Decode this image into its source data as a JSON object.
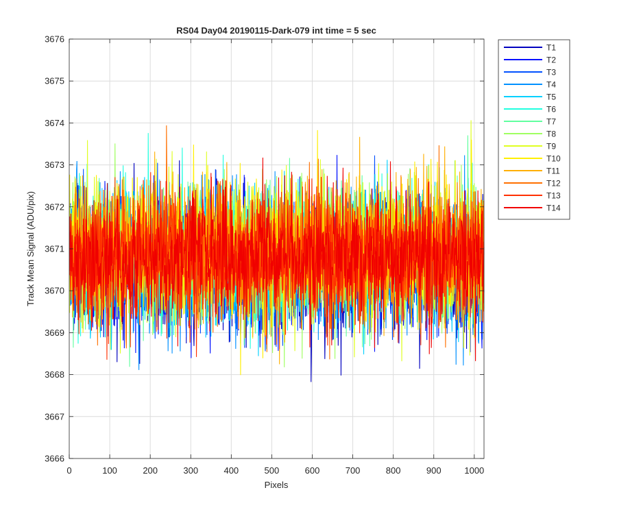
{
  "chart_data": {
    "type": "line",
    "title": "RS04 Day04 20190115-Dark-079 int time = 5 sec",
    "xlabel": "Pixels",
    "ylabel": "Track Mean Signal (ADU/pix)",
    "xlim": [
      0,
      1024
    ],
    "ylim": [
      3666,
      3676
    ],
    "x_ticks": [
      0,
      100,
      200,
      300,
      400,
      500,
      600,
      700,
      800,
      900,
      1000
    ],
    "y_ticks": [
      3666,
      3667,
      3668,
      3669,
      3670,
      3671,
      3672,
      3673,
      3674,
      3675,
      3676
    ],
    "grid": true,
    "legend_placement": "outside-top-right",
    "x_count": 1024,
    "series": [
      {
        "name": "T1",
        "color": "#0000BF",
        "mean": 3670.45,
        "noise_sd": 0.8
      },
      {
        "name": "T2",
        "color": "#0010FF",
        "mean": 3670.55,
        "noise_sd": 0.78
      },
      {
        "name": "T3",
        "color": "#0050FF",
        "mean": 3670.6,
        "noise_sd": 0.78
      },
      {
        "name": "T4",
        "color": "#0090FF",
        "mean": 3670.7,
        "noise_sd": 0.8
      },
      {
        "name": "T5",
        "color": "#00D0FF",
        "mean": 3670.75,
        "noise_sd": 0.8
      },
      {
        "name": "T6",
        "color": "#20FFDF",
        "mean": 3670.85,
        "noise_sd": 0.78
      },
      {
        "name": "T7",
        "color": "#60FF9F",
        "mean": 3670.85,
        "noise_sd": 0.78
      },
      {
        "name": "T8",
        "color": "#9FFF60",
        "mean": 3670.9,
        "noise_sd": 0.78
      },
      {
        "name": "T9",
        "color": "#DFFF20",
        "mean": 3670.95,
        "noise_sd": 0.8
      },
      {
        "name": "T10",
        "color": "#FFEF00",
        "mean": 3671.0,
        "noise_sd": 0.82
      },
      {
        "name": "T11",
        "color": "#FFAF00",
        "mean": 3670.95,
        "noise_sd": 0.8
      },
      {
        "name": "T12",
        "color": "#FF7000",
        "mean": 3670.85,
        "noise_sd": 0.8
      },
      {
        "name": "T13",
        "color": "#FF3000",
        "mean": 3670.8,
        "noise_sd": 0.78
      },
      {
        "name": "T14",
        "color": "#F00000",
        "mean": 3670.8,
        "noise_sd": 0.75
      }
    ]
  }
}
